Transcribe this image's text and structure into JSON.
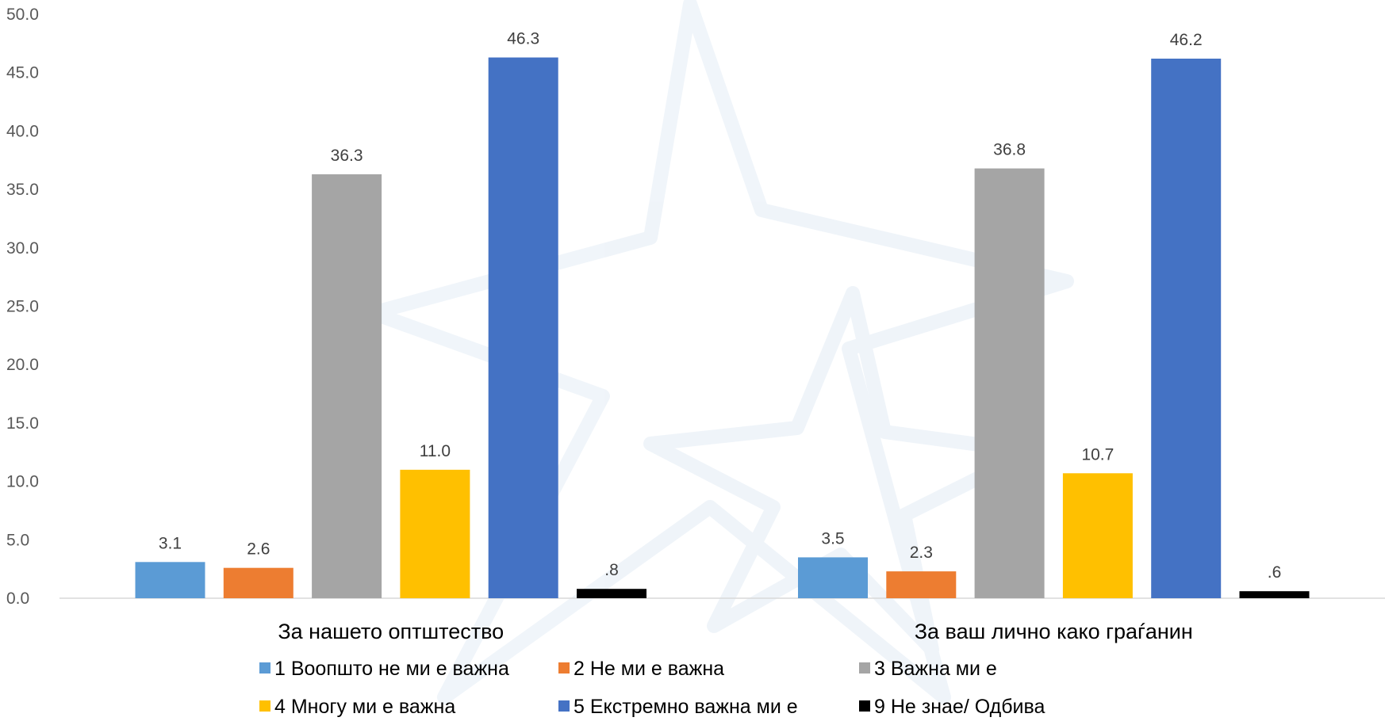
{
  "chart_data": {
    "type": "bar",
    "categories": [
      "За нашето оптштество",
      "За ваш лично како граѓанин"
    ],
    "series": [
      {
        "name": "1 Воопшто не ми е важна",
        "values": [
          3.1,
          3.5
        ],
        "labels": [
          "3.1",
          "3.5"
        ],
        "color": "#5b9bd5"
      },
      {
        "name": "2 Не ми е важна",
        "values": [
          2.6,
          2.3
        ],
        "labels": [
          "2.6",
          "2.3"
        ],
        "color": "#ed7d31"
      },
      {
        "name": "3 Важна ми е",
        "values": [
          36.3,
          36.8
        ],
        "labels": [
          "36.3",
          "36.8"
        ],
        "color": "#a5a5a5"
      },
      {
        "name": "4 Многу ми е важна",
        "values": [
          11.0,
          10.7
        ],
        "labels": [
          "11.0",
          "10.7"
        ],
        "color": "#ffc000"
      },
      {
        "name": "5 Екстремно важна ми е",
        "values": [
          46.3,
          46.2
        ],
        "labels": [
          "46.3",
          "46.2"
        ],
        "color": "#4472c4"
      },
      {
        "name": "9 Не знае/ Одбива",
        "values": [
          0.8,
          0.6
        ],
        "labels": [
          ".8",
          ".6"
        ],
        "color": "#000000"
      }
    ],
    "ylim": [
      0,
      50
    ],
    "yticks": [
      "0.0",
      "5.0",
      "10.0",
      "15.0",
      "20.0",
      "25.0",
      "30.0",
      "35.0",
      "40.0",
      "45.0",
      "50.0"
    ],
    "title": "",
    "xlabel": "",
    "ylabel": "",
    "grid": false,
    "legend": "bottom"
  }
}
